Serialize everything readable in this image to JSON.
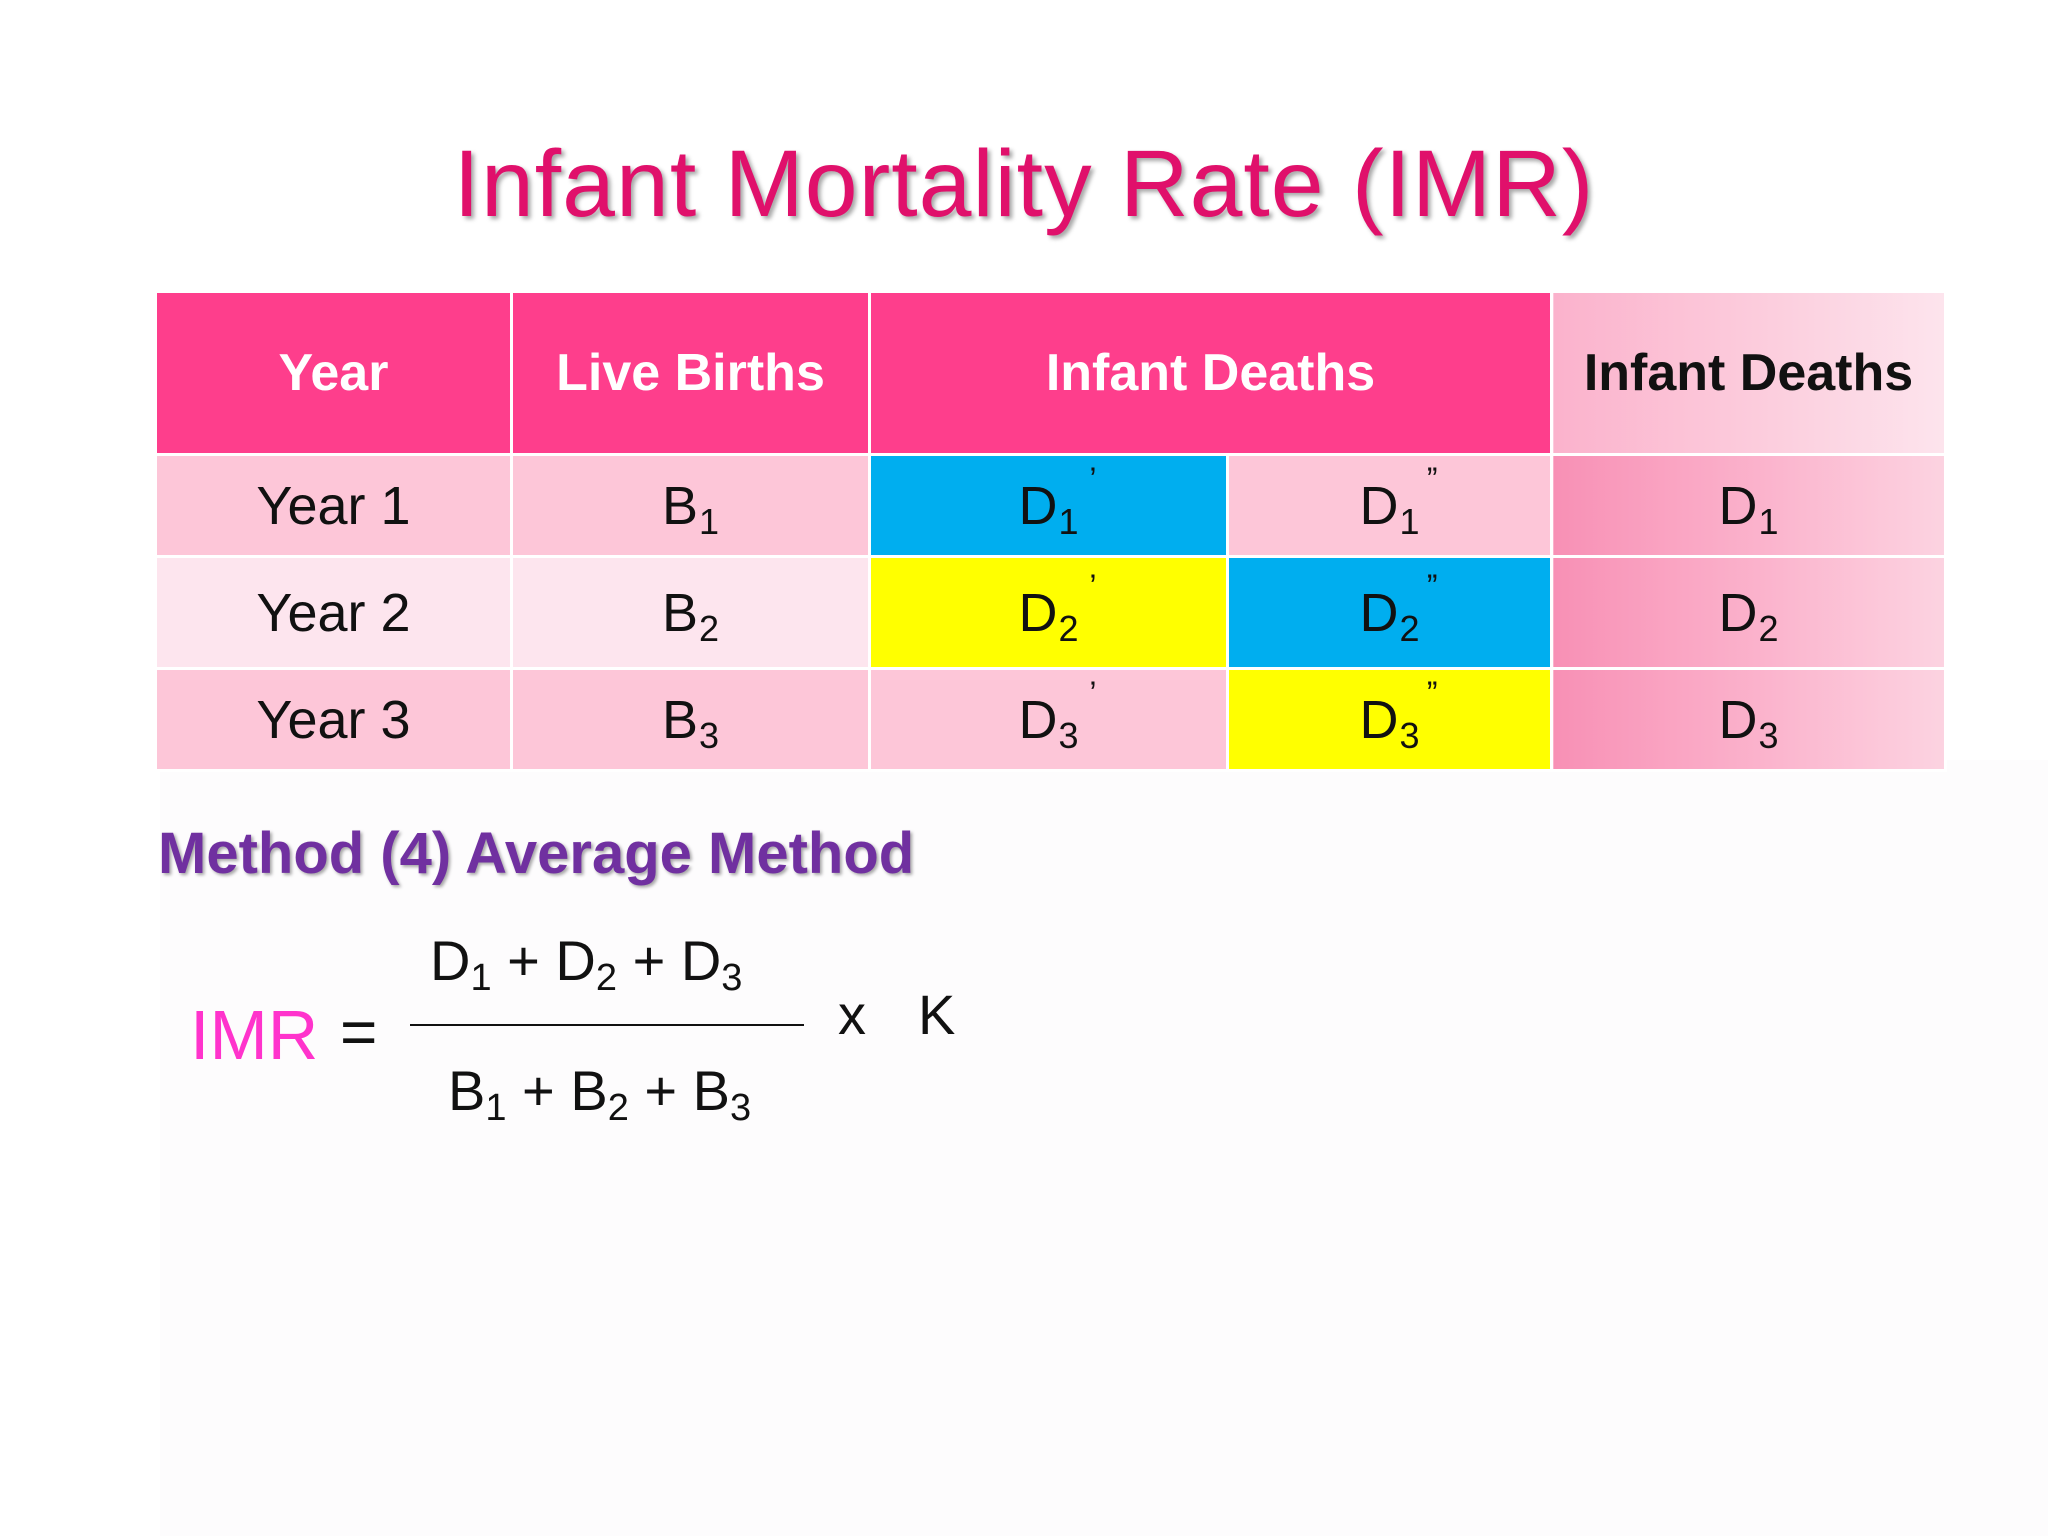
{
  "title": "Infant Mortality Rate (IMR)",
  "table": {
    "headers": [
      "Year",
      "Live Births",
      "Infant Deaths",
      "Infant Deaths"
    ],
    "rows": [
      {
        "year": "Year 1",
        "births": {
          "base": "B",
          "sub": "1"
        },
        "d_prime": {
          "base": "D",
          "sub": "1",
          "mark": "’"
        },
        "d_dprime": {
          "base": "D",
          "sub": "1",
          "mark": "”"
        },
        "total": {
          "base": "D",
          "sub": "1"
        }
      },
      {
        "year": "Year 2",
        "births": {
          "base": "B",
          "sub": "2"
        },
        "d_prime": {
          "base": "D",
          "sub": "2",
          "mark": "’"
        },
        "d_dprime": {
          "base": "D",
          "sub": "2",
          "mark": "”"
        },
        "total": {
          "base": "D",
          "sub": "2"
        }
      },
      {
        "year": "Year 3",
        "births": {
          "base": "B",
          "sub": "3"
        },
        "d_prime": {
          "base": "D",
          "sub": "3",
          "mark": "’"
        },
        "d_dprime": {
          "base": "D",
          "sub": "3",
          "mark": "”"
        },
        "total": {
          "base": "D",
          "sub": "3"
        }
      }
    ]
  },
  "method_heading": "Method (4) Average Method",
  "formula": {
    "lhs": "IMR",
    "equals": "=",
    "numerator": [
      {
        "base": "D",
        "sub": "1"
      },
      {
        "op": " + "
      },
      {
        "base": "D",
        "sub": "2"
      },
      {
        "op": " + "
      },
      {
        "base": "D",
        "sub": "3"
      }
    ],
    "denominator": [
      {
        "base": "B",
        "sub": "1"
      },
      {
        "op": " + "
      },
      {
        "base": "B",
        "sub": "2"
      },
      {
        "op": " + "
      },
      {
        "base": "B",
        "sub": "3"
      }
    ],
    "times": "x",
    "constant": "K"
  },
  "colors": {
    "title": "#e0106b",
    "header_bg": "#fe3e8c",
    "highlight_blue": "#00aeef",
    "highlight_yellow": "#ffff00",
    "method_heading": "#7030a0",
    "imr_label": "#ff33cc"
  }
}
